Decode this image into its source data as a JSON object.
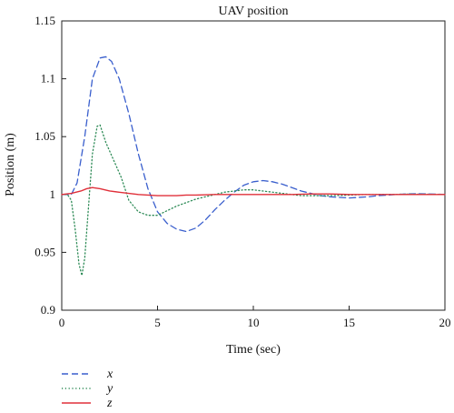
{
  "chart_data": {
    "type": "line",
    "title": "UAV position",
    "xlabel": "Time (sec)",
    "ylabel": "Position (m)",
    "xlim": [
      0,
      20
    ],
    "ylim": [
      0.9,
      1.15
    ],
    "x_ticks": [
      0,
      5,
      10,
      15,
      20
    ],
    "y_ticks": [
      0.9,
      0.95,
      1,
      1.05,
      1.1,
      1.15
    ],
    "x_tick_labels": [
      "0",
      "5",
      "10",
      "15",
      "20"
    ],
    "y_tick_labels": [
      "0.9",
      "0.95",
      "1",
      "1.05",
      "1.1",
      "1.15"
    ],
    "grid": false,
    "legend_position": "bottom-left",
    "series": [
      {
        "name": "x",
        "color": "#3a5fcd",
        "style": "dashed",
        "points": [
          [
            0,
            1.0
          ],
          [
            0.5,
            1.0
          ],
          [
            0.8,
            1.01
          ],
          [
            1.2,
            1.05
          ],
          [
            1.6,
            1.1
          ],
          [
            2.0,
            1.118
          ],
          [
            2.3,
            1.119
          ],
          [
            2.6,
            1.115
          ],
          [
            3.0,
            1.1
          ],
          [
            3.5,
            1.07
          ],
          [
            4.0,
            1.035
          ],
          [
            4.5,
            1.005
          ],
          [
            5.0,
            0.985
          ],
          [
            5.5,
            0.975
          ],
          [
            6.0,
            0.97
          ],
          [
            6.5,
            0.968
          ],
          [
            7.0,
            0.971
          ],
          [
            7.5,
            0.978
          ],
          [
            8.0,
            0.987
          ],
          [
            8.5,
            0.995
          ],
          [
            9.0,
            1.002
          ],
          [
            9.5,
            1.008
          ],
          [
            10.0,
            1.011
          ],
          [
            10.5,
            1.012
          ],
          [
            11.0,
            1.011
          ],
          [
            11.5,
            1.009
          ],
          [
            12.0,
            1.006
          ],
          [
            12.5,
            1.003
          ],
          [
            13.0,
            1.001
          ],
          [
            13.5,
            0.999
          ],
          [
            14.0,
            0.998
          ],
          [
            14.5,
            0.9975
          ],
          [
            15.0,
            0.997
          ],
          [
            15.5,
            0.9975
          ],
          [
            16.0,
            0.998
          ],
          [
            16.5,
            0.999
          ],
          [
            17.0,
            0.9995
          ],
          [
            17.5,
            1.0
          ],
          [
            18.0,
            1.0005
          ],
          [
            18.5,
            1.0006
          ],
          [
            19.0,
            1.0005
          ],
          [
            19.5,
            1.0003
          ],
          [
            20.0,
            1.0
          ]
        ]
      },
      {
        "name": "y",
        "color": "#2e8b57",
        "style": "dotted",
        "points": [
          [
            0,
            1.0
          ],
          [
            0.3,
            1.0
          ],
          [
            0.5,
            0.995
          ],
          [
            0.7,
            0.97
          ],
          [
            0.9,
            0.94
          ],
          [
            1.05,
            0.93
          ],
          [
            1.2,
            0.945
          ],
          [
            1.4,
            0.99
          ],
          [
            1.6,
            1.035
          ],
          [
            1.85,
            1.059
          ],
          [
            2.0,
            1.06
          ],
          [
            2.3,
            1.045
          ],
          [
            2.7,
            1.03
          ],
          [
            3.1,
            1.015
          ],
          [
            3.5,
            0.995
          ],
          [
            4.0,
            0.985
          ],
          [
            4.5,
            0.982
          ],
          [
            5.0,
            0.982
          ],
          [
            5.5,
            0.986
          ],
          [
            6.0,
            0.99
          ],
          [
            6.5,
            0.993
          ],
          [
            7.0,
            0.996
          ],
          [
            7.5,
            0.998
          ],
          [
            8.0,
            1.0
          ],
          [
            8.5,
            1.002
          ],
          [
            9.0,
            1.003
          ],
          [
            9.5,
            1.004
          ],
          [
            10.0,
            1.004
          ],
          [
            10.5,
            1.003
          ],
          [
            11.0,
            1.002
          ],
          [
            11.5,
            1.001
          ],
          [
            12.0,
            1.0
          ],
          [
            12.5,
            0.999
          ],
          [
            13.0,
            0.999
          ],
          [
            14.0,
            0.999
          ],
          [
            15.0,
            0.9995
          ],
          [
            16.0,
            1.0
          ],
          [
            17.0,
            1.0
          ],
          [
            18.0,
            1.0003
          ],
          [
            19.0,
            1.0002
          ],
          [
            20.0,
            1.0
          ]
        ]
      },
      {
        "name": "z",
        "color": "#e0303a",
        "style": "solid",
        "points": [
          [
            0,
            1.0
          ],
          [
            0.5,
            1.001
          ],
          [
            1.0,
            1.003
          ],
          [
            1.3,
            1.005
          ],
          [
            1.6,
            1.006
          ],
          [
            2.0,
            1.005
          ],
          [
            2.5,
            1.003
          ],
          [
            3.0,
            1.002
          ],
          [
            3.5,
            1.001
          ],
          [
            4.0,
            1.0
          ],
          [
            4.5,
            0.9995
          ],
          [
            5.0,
            0.999
          ],
          [
            5.5,
            0.999
          ],
          [
            6.0,
            0.999
          ],
          [
            6.5,
            0.9995
          ],
          [
            7.0,
            0.9995
          ],
          [
            8.0,
            1.0
          ],
          [
            9.0,
            1.0
          ],
          [
            10.0,
            1.0
          ],
          [
            11.0,
            1.0
          ],
          [
            12.0,
            1.0
          ],
          [
            13.0,
            1.0005
          ],
          [
            14.0,
            1.0005
          ],
          [
            15.0,
            1.0
          ],
          [
            16.0,
            1.0
          ],
          [
            17.0,
            1.0
          ],
          [
            18.0,
            1.0
          ],
          [
            19.0,
            1.0
          ],
          [
            20.0,
            1.0
          ]
        ]
      }
    ]
  }
}
